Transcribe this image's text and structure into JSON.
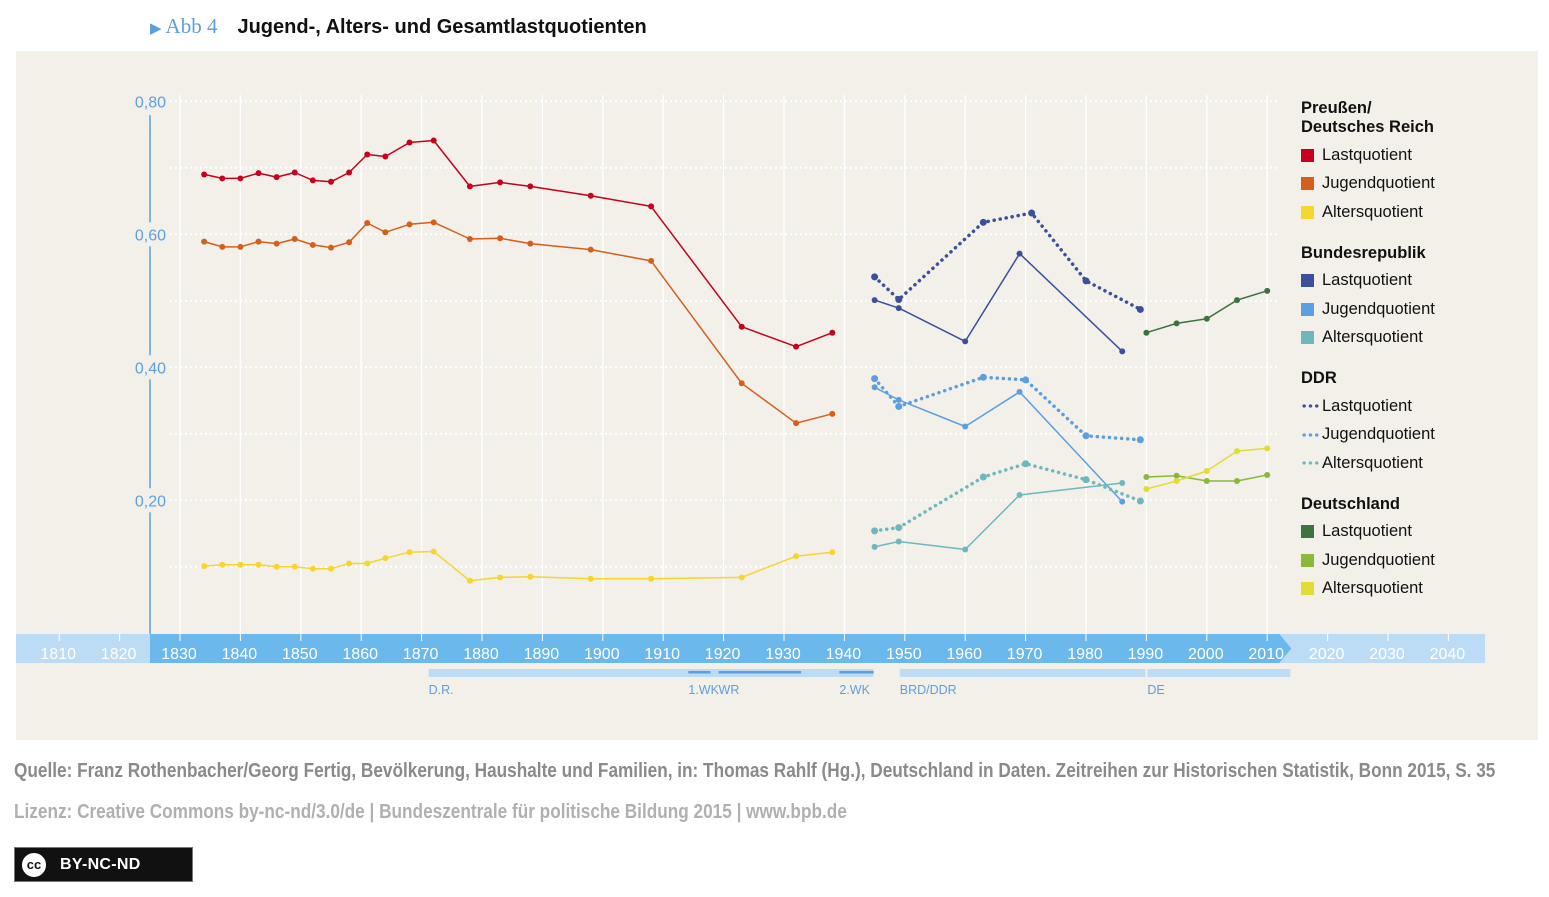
{
  "header": {
    "figure_label": "Abb 4",
    "title": "Jugend-, Alters- und Gesamtlastquotienten"
  },
  "chart_data": {
    "type": "line",
    "title": "Jugend-, Alters- und Gesamtlastquotienten",
    "xlabel": "",
    "ylabel": "",
    "ylim": [
      0,
      0.8
    ],
    "yticks": [
      "0,80",
      "0,60",
      "0,40",
      "0,20"
    ],
    "ytick_values": [
      0.8,
      0.6,
      0.4,
      0.2
    ],
    "xticks": [
      "1810",
      "1820",
      "1830",
      "1840",
      "1850",
      "1860",
      "1870",
      "1880",
      "1890",
      "1900",
      "1910",
      "1920",
      "1930",
      "1940",
      "1950",
      "1960",
      "1970",
      "1980",
      "1990",
      "2000",
      "2010",
      "2020",
      "2030",
      "2040"
    ],
    "xlim": [
      1805,
      2045
    ],
    "grid": true,
    "legend_position": "right",
    "eras": [
      {
        "label": "D.R.",
        "from": 1871,
        "to": 1945
      },
      {
        "label": "1.WK",
        "from": 1914,
        "to": 1918
      },
      {
        "label": "WR",
        "from": 1919,
        "to": 1933
      },
      {
        "label": "2.WK",
        "from": 1939,
        "to": 1945
      },
      {
        "label": "BRD/DDR",
        "from": 1949,
        "to": 1990
      },
      {
        "label": "DE",
        "from": 1990,
        "to": 2014
      }
    ],
    "groups": [
      {
        "name": "Preußen/ Deutsches Reich",
        "name_lines": [
          "Preußen/",
          "Deutsches Reich"
        ],
        "dashed": false,
        "series": [
          {
            "name": "Lastquotient",
            "color": "#c8001e",
            "x": [
              1834,
              1837,
              1840,
              1843,
              1846,
              1849,
              1852,
              1855,
              1858,
              1861,
              1864,
              1868,
              1872,
              1878,
              1883,
              1888,
              1898,
              1908,
              1923,
              1932,
              1938
            ],
            "y": [
              0.69,
              0.684,
              0.684,
              0.692,
              0.686,
              0.693,
              0.681,
              0.679,
              0.693,
              0.72,
              0.717,
              0.738,
              0.741,
              0.672,
              0.678,
              0.672,
              0.658,
              0.642,
              0.461,
              0.431,
              0.452
            ]
          },
          {
            "name": "Jugendquotient",
            "color": "#d45f1c",
            "x": [
              1834,
              1837,
              1840,
              1843,
              1846,
              1849,
              1852,
              1855,
              1858,
              1861,
              1864,
              1868,
              1872,
              1878,
              1883,
              1888,
              1898,
              1908,
              1923,
              1932,
              1938
            ],
            "y": [
              0.589,
              0.581,
              0.581,
              0.589,
              0.586,
              0.593,
              0.584,
              0.58,
              0.588,
              0.617,
              0.603,
              0.615,
              0.618,
              0.593,
              0.594,
              0.586,
              0.577,
              0.56,
              0.376,
              0.316,
              0.33
            ]
          },
          {
            "name": "Altersquotient",
            "color": "#f5d52e",
            "x": [
              1834,
              1837,
              1840,
              1843,
              1846,
              1849,
              1852,
              1855,
              1858,
              1861,
              1864,
              1868,
              1872,
              1878,
              1883,
              1888,
              1898,
              1908,
              1923,
              1932,
              1938
            ],
            "y": [
              0.101,
              0.103,
              0.103,
              0.103,
              0.1,
              0.1,
              0.097,
              0.097,
              0.105,
              0.105,
              0.113,
              0.122,
              0.123,
              0.079,
              0.084,
              0.085,
              0.082,
              0.082,
              0.084,
              0.116,
              0.122
            ]
          }
        ]
      },
      {
        "name": "Bundesrepublik",
        "name_lines": [
          "Bundesrepublik"
        ],
        "dashed": false,
        "series": [
          {
            "name": "Lastquotient",
            "color": "#3b4f9c",
            "x": [
              1945,
              1949,
              1960,
              1969,
              1986
            ],
            "y": [
              0.501,
              0.489,
              0.439,
              0.571,
              0.424
            ]
          },
          {
            "name": "Jugendquotient",
            "color": "#5a9fe2",
            "x": [
              1945,
              1949,
              1960,
              1969,
              1986
            ],
            "y": [
              0.37,
              0.351,
              0.311,
              0.363,
              0.198
            ]
          },
          {
            "name": "Altersquotient",
            "color": "#6cb8bd",
            "x": [
              1945,
              1949,
              1960,
              1969,
              1986
            ],
            "y": [
              0.13,
              0.138,
              0.126,
              0.208,
              0.226
            ]
          }
        ]
      },
      {
        "name": "DDR",
        "name_lines": [
          "DDR"
        ],
        "dashed": true,
        "series": [
          {
            "name": "Lastquotient",
            "color": "#3b4f9c",
            "x": [
              1945,
              1949,
              1963,
              1971,
              1980,
              1989
            ],
            "y": [
              0.536,
              0.502,
              0.618,
              0.632,
              0.53,
              0.487
            ]
          },
          {
            "name": "Jugendquotient",
            "color": "#5a9fe2",
            "x": [
              1945,
              1949,
              1963,
              1970,
              1980,
              1989
            ],
            "y": [
              0.383,
              0.341,
              0.385,
              0.381,
              0.297,
              0.291
            ]
          },
          {
            "name": "Altersquotient",
            "color": "#6cb8bd",
            "x": [
              1945,
              1949,
              1963,
              1970,
              1980,
              1989
            ],
            "y": [
              0.154,
              0.159,
              0.235,
              0.255,
              0.231,
              0.199
            ]
          }
        ]
      },
      {
        "name": "Deutschland",
        "name_lines": [
          "Deutschland"
        ],
        "dashed": false,
        "series": [
          {
            "name": "Lastquotient",
            "color": "#3e7240",
            "x": [
              1990,
              1995,
              2000,
              2005,
              2010
            ],
            "y": [
              0.452,
              0.466,
              0.473,
              0.501,
              0.515
            ]
          },
          {
            "name": "Jugendquotient",
            "color": "#8ab83a",
            "x": [
              1990,
              1995,
              2000,
              2005,
              2010
            ],
            "y": [
              0.235,
              0.237,
              0.229,
              0.229,
              0.238
            ]
          },
          {
            "name": "Altersquotient",
            "color": "#e2dc34",
            "x": [
              1990,
              1995,
              2000,
              2005,
              2010
            ],
            "y": [
              0.217,
              0.229,
              0.244,
              0.274,
              0.278
            ]
          }
        ]
      }
    ]
  },
  "colors": {
    "panel_bg": "#f2f0e9",
    "axis_blue": "#5c9fe0",
    "timeline_dark": "#6bb8ec",
    "timeline_light": "#bcdcf6"
  },
  "footer": {
    "source": "Quelle: Franz Rothenbacher/Georg Fertig, Bevölkerung, Haushalte und Familien, in: Thomas Rahlf (Hg.), Deutschland in Daten. Zeitreihen zur Historischen Statistik, Bonn 2015, S. 35",
    "license": "Lizenz: Creative Commons by-nc-nd/3.0/de | Bundeszentrale für politische Bildung 2015 | www.bpb.de",
    "badge_cc": "cc",
    "badge_text": "BY-NC-ND"
  }
}
